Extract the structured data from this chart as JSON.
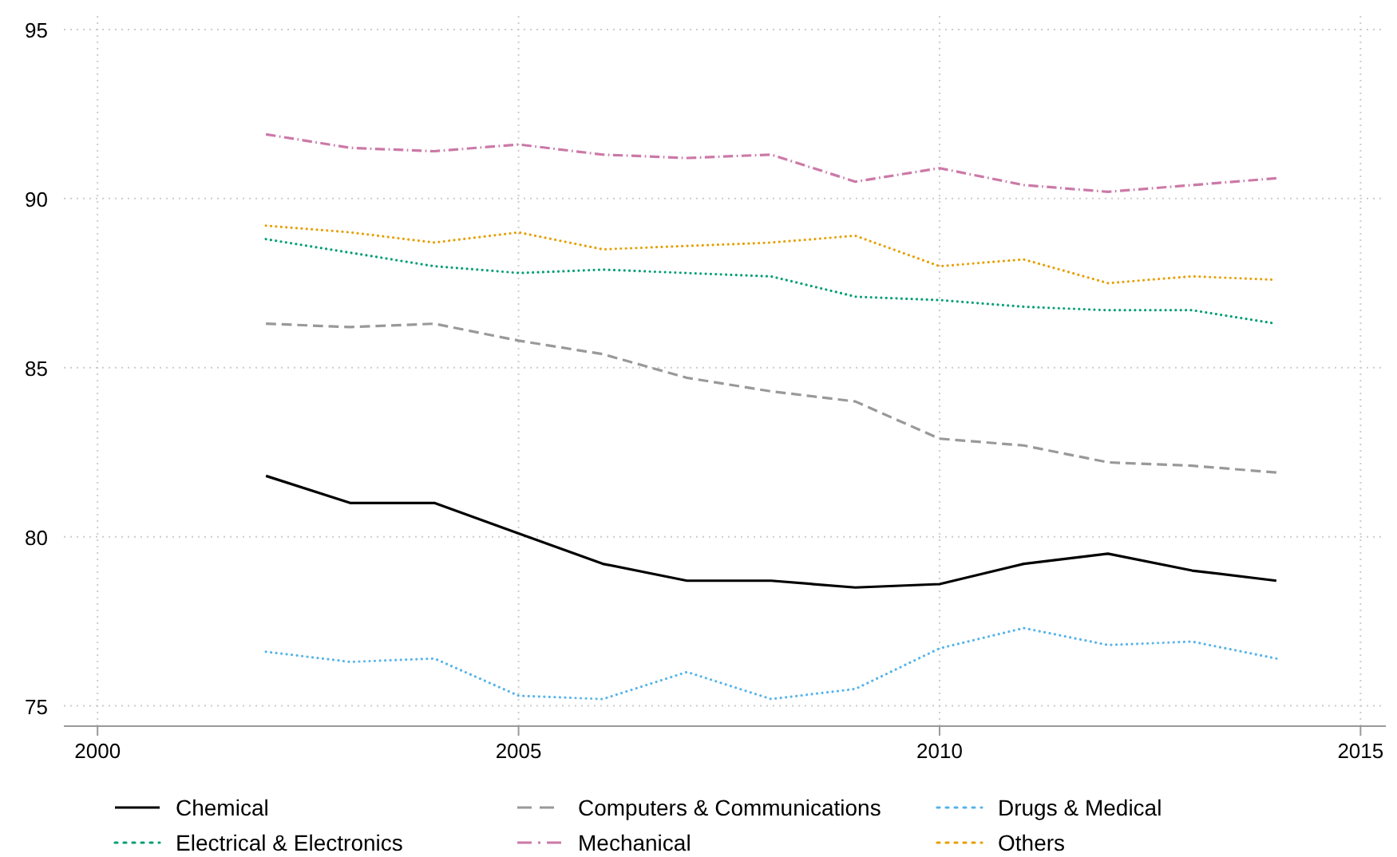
{
  "chart_data": {
    "type": "line",
    "x": [
      2002,
      2003,
      2004,
      2005,
      2006,
      2007,
      2008,
      2009,
      2010,
      2011,
      2012,
      2013,
      2014
    ],
    "xlim": [
      1999.6,
      2015.3
    ],
    "xticks": [
      2000,
      2005,
      2010,
      2015
    ],
    "ylim": [
      74.4,
      95.4
    ],
    "yticks": [
      75,
      80,
      85,
      90,
      95
    ],
    "grid": true,
    "legend": "bottom",
    "series": [
      {
        "name": "Chemical",
        "color": "#000000",
        "line_style": "solid",
        "values": [
          81.8,
          81.0,
          81.0,
          80.1,
          79.2,
          78.7,
          78.7,
          78.5,
          78.6,
          79.2,
          79.5,
          79.0,
          78.7
        ]
      },
      {
        "name": "Computers & Communications",
        "color": "#999999",
        "line_style": "dashed",
        "values": [
          86.3,
          86.2,
          86.3,
          85.8,
          85.4,
          84.7,
          84.3,
          84.0,
          82.9,
          82.7,
          82.2,
          82.1,
          81.9
        ]
      },
      {
        "name": "Drugs & Medical",
        "color": "#56b4e9",
        "line_style": "dotted",
        "values": [
          76.6,
          76.3,
          76.4,
          75.3,
          75.2,
          76.0,
          75.2,
          75.5,
          76.7,
          77.3,
          76.8,
          76.9,
          76.4
        ]
      },
      {
        "name": "Electrical & Electronics",
        "color": "#009e73",
        "line_style": "dotted",
        "values": [
          88.8,
          88.4,
          88.0,
          87.8,
          87.9,
          87.8,
          87.7,
          87.1,
          87.0,
          86.8,
          86.7,
          86.7,
          86.3
        ]
      },
      {
        "name": "Mechanical",
        "color": "#cc79a7",
        "line_style": "dashdot",
        "values": [
          91.9,
          91.5,
          91.4,
          91.6,
          91.3,
          91.2,
          91.3,
          90.5,
          90.9,
          90.4,
          90.2,
          90.4,
          90.6
        ]
      },
      {
        "name": "Others",
        "color": "#e69f00",
        "line_style": "dotted",
        "values": [
          89.2,
          89.0,
          88.7,
          89.0,
          88.5,
          88.6,
          88.7,
          88.9,
          88.0,
          88.2,
          87.5,
          87.7,
          87.6
        ]
      }
    ]
  }
}
